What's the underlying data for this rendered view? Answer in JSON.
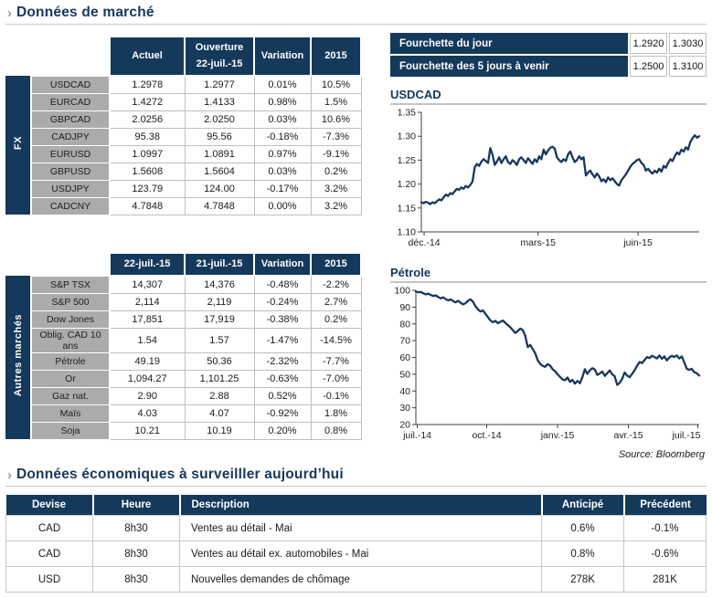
{
  "colors": {
    "navy": "#14395B",
    "title_navy": "#17375E",
    "green": "#4BA578",
    "red": "#F05F5F",
    "gray_label": "#ABABAB",
    "line": "#17375E"
  },
  "section1": {
    "chevron": "›",
    "title": "Données de marché"
  },
  "fx_table": {
    "band_label": "FX",
    "headers": {
      "actual": "Actuel",
      "open1": "Ouverture",
      "open2": "22-juil.-15",
      "variation": "Variation",
      "ytd": "2015"
    },
    "rows": [
      {
        "label": "USDCAD",
        "actual": "1.2978",
        "open": "1.2977",
        "variation": "0.01%",
        "variation_color": "green",
        "ytd": "10.5%",
        "ytd_color": "green"
      },
      {
        "label": "EURCAD",
        "actual": "1.4272",
        "open": "1.4133",
        "variation": "0.98%",
        "variation_color": "green",
        "ytd": "1.5%",
        "ytd_color": "green"
      },
      {
        "label": "GBPCAD",
        "actual": "2.0256",
        "open": "2.0250",
        "variation": "0.03%",
        "variation_color": "green",
        "ytd": "10.6%",
        "ytd_color": "green"
      },
      {
        "label": "CADJPY",
        "actual": "95.38",
        "open": "95.56",
        "variation": "-0.18%",
        "variation_color": "red",
        "ytd": "-7.3%",
        "ytd_color": "red"
      },
      {
        "label": "EURUSD",
        "actual": "1.0997",
        "open": "1.0891",
        "variation": "0.97%",
        "variation_color": "green",
        "ytd": "-9.1%",
        "ytd_color": "red"
      },
      {
        "label": "GBPUSD",
        "actual": "1.5608",
        "open": "1.5604",
        "variation": "0.03%",
        "variation_color": "green",
        "ytd": "0.2%",
        "ytd_color": "green"
      },
      {
        "label": "USDJPY",
        "actual": "123.79",
        "open": "124.00",
        "variation": "-0.17%",
        "variation_color": "red",
        "ytd": "3.2%",
        "ytd_color": "green"
      },
      {
        "label": "CADCNY",
        "actual": "4.7848",
        "open": "4.7848",
        "variation": "0.00%",
        "variation_color": "dark",
        "ytd": "3.2%",
        "ytd_color": "green"
      }
    ]
  },
  "markets_table": {
    "band_label": "Autres marchés",
    "headers": [
      "22-juil.-15",
      "21-juil.-15",
      "Variation",
      "2015"
    ],
    "rows": [
      {
        "label": "S&P TSX",
        "v1": "14,307",
        "v2": "14,376",
        "variation": "-0.48%",
        "variation_color": "red",
        "ytd": "-2.2%",
        "ytd_color": "red"
      },
      {
        "label": "S&P 500",
        "v1": "2,114",
        "v2": "2,119",
        "variation": "-0.24%",
        "variation_color": "red",
        "ytd": "2.7%",
        "ytd_color": "green"
      },
      {
        "label": "Dow Jones",
        "v1": "17,851",
        "v2": "17,919",
        "variation": "-0.38%",
        "variation_color": "red",
        "ytd": "0.2%",
        "ytd_color": "green"
      },
      {
        "label": "Oblig. CAD 10 ans",
        "v1": "1.54",
        "v2": "1.57",
        "variation": "-1.47%",
        "variation_color": "red",
        "ytd": "-14.5%",
        "ytd_color": "red"
      },
      {
        "label": "Pétrole",
        "v1": "49.19",
        "v2": "50.36",
        "variation": "-2.32%",
        "variation_color": "red",
        "ytd": "-7.7%",
        "ytd_color": "red"
      },
      {
        "label": "Or",
        "v1": "1,094.27",
        "v2": "1,101.25",
        "variation": "-0.63%",
        "variation_color": "red",
        "ytd": "-7.0%",
        "ytd_color": "red"
      },
      {
        "label": "Gaz nat.",
        "v1": "2.90",
        "v2": "2.88",
        "variation": "0.52%",
        "variation_color": "green",
        "ytd": "-0.1%",
        "ytd_color": "red"
      },
      {
        "label": "Maïs",
        "v1": "4.03",
        "v2": "4.07",
        "variation": "-0.92%",
        "variation_color": "red",
        "ytd": "1.8%",
        "ytd_color": "green"
      },
      {
        "label": "Soja",
        "v1": "10.21",
        "v2": "10.19",
        "variation": "0.20%",
        "variation_color": "green",
        "ytd": "0.8%",
        "ytd_color": "green"
      }
    ]
  },
  "fourchette": {
    "rows": [
      {
        "label": "Fourchette du jour",
        "low": "1.2920",
        "high": "1.3030"
      },
      {
        "label": "Fourchette des 5 jours à venir",
        "low": "1.2500",
        "high": "1.3100"
      }
    ]
  },
  "source": "Source: Bloomberg",
  "section2": {
    "chevron": "›",
    "title": "Données économiques à surveilller aujourd’hui"
  },
  "econ_table": {
    "headers": [
      "Devise",
      "Heure",
      "Description",
      "Anticipé",
      "Précédent"
    ],
    "rows": [
      [
        "CAD",
        "8h30",
        "Ventes au détail - Mai",
        "0.6%",
        "-0.1%"
      ],
      [
        "CAD",
        "8h30",
        "Ventes au détail ex. automobiles - Mai",
        "0.8%",
        "-0.6%"
      ],
      [
        "USD",
        "8h30",
        "Nouvelles demandes de chômage",
        "278K",
        "281K"
      ]
    ]
  },
  "chart_data": [
    {
      "type": "line",
      "title": "USDCAD",
      "line_color": "#17375E",
      "ylim": [
        1.1,
        1.35
      ],
      "yticks": [
        1.1,
        1.15,
        1.2,
        1.25,
        1.3,
        1.35
      ],
      "y_decimals": 2,
      "x_ticks": [
        {
          "pos": 0.01,
          "label": "déc.-14"
        },
        {
          "pos": 0.42,
          "label": "mars-15"
        },
        {
          "pos": 0.78,
          "label": "juin-15"
        }
      ],
      "values": [
        1.162,
        1.16,
        1.163,
        1.161,
        1.158,
        1.162,
        1.16,
        1.164,
        1.168,
        1.166,
        1.172,
        1.178,
        1.175,
        1.181,
        1.179,
        1.185,
        1.19,
        1.188,
        1.193,
        1.19,
        1.196,
        1.193,
        1.198,
        1.205,
        1.235,
        1.242,
        1.238,
        1.247,
        1.252,
        1.248,
        1.244,
        1.275,
        1.262,
        1.24,
        1.247,
        1.256,
        1.244,
        1.252,
        1.258,
        1.246,
        1.242,
        1.25,
        1.246,
        1.24,
        1.252,
        1.256,
        1.25,
        1.244,
        1.254,
        1.248,
        1.242,
        1.252,
        1.246,
        1.258,
        1.252,
        1.272,
        1.262,
        1.27,
        1.276,
        1.278,
        1.274,
        1.256,
        1.25,
        1.246,
        1.252,
        1.248,
        1.262,
        1.268,
        1.256,
        1.246,
        1.25,
        1.258,
        1.252,
        1.256,
        1.218,
        1.224,
        1.228,
        1.22,
        1.214,
        1.222,
        1.216,
        1.206,
        1.21,
        1.204,
        1.214,
        1.208,
        1.212,
        1.206,
        1.2,
        1.197,
        1.208,
        1.214,
        1.22,
        1.228,
        1.236,
        1.242,
        1.246,
        1.25,
        1.252,
        1.244,
        1.24,
        1.228,
        1.232,
        1.226,
        1.222,
        1.228,
        1.224,
        1.232,
        1.226,
        1.238,
        1.234,
        1.244,
        1.252,
        1.248,
        1.258,
        1.266,
        1.262,
        1.272,
        1.268,
        1.277,
        1.272,
        1.288,
        1.296,
        1.302,
        1.297,
        1.3
      ]
    },
    {
      "type": "line",
      "title": "Pétrole",
      "line_color": "#17375E",
      "ylim": [
        20,
        100
      ],
      "yticks": [
        20,
        30,
        40,
        50,
        60,
        70,
        80,
        90,
        100
      ],
      "y_decimals": 0,
      "x_ticks": [
        {
          "pos": 0.005,
          "label": "juil.-14"
        },
        {
          "pos": 0.25,
          "label": "oct.-14"
        },
        {
          "pos": 0.5,
          "label": "janv.-15"
        },
        {
          "pos": 0.75,
          "label": "avr.-15"
        },
        {
          "pos": 0.995,
          "label": "juil.-15"
        }
      ],
      "values": [
        99.3,
        98.8,
        99.0,
        98.2,
        97.6,
        98.0,
        97.2,
        96.6,
        97.0,
        96.0,
        95.2,
        95.8,
        94.8,
        94.0,
        94.6,
        93.6,
        92.8,
        93.8,
        92.6,
        91.6,
        92.4,
        93.8,
        94.6,
        93.2,
        90.4,
        88.6,
        87.4,
        88.0,
        86.0,
        84.0,
        82.0,
        81.0,
        81.8,
        80.4,
        81.2,
        82.0,
        80.6,
        79.2,
        78.0,
        76.2,
        74.6,
        75.8,
        77.2,
        76.4,
        73.0,
        66.2,
        67.4,
        65.0,
        62.6,
        58.4,
        56.2,
        55.0,
        54.4,
        56.0,
        55.2,
        53.0,
        51.8,
        50.0,
        48.4,
        47.0,
        46.4,
        48.0,
        45.4,
        46.6,
        44.4,
        46.0,
        44.6,
        48.2,
        53.0,
        50.2,
        52.4,
        53.6,
        52.8,
        49.6,
        50.4,
        51.6,
        49.0,
        50.6,
        52.2,
        50.0,
        48.8,
        43.6,
        44.8,
        47.2,
        51.0,
        49.2,
        48.2,
        50.2,
        52.4,
        55.0,
        57.2,
        56.6,
        58.4,
        60.2,
        59.6,
        61.0,
        60.2,
        59.4,
        61.2,
        59.2,
        60.6,
        58.2,
        60.0,
        61.0,
        60.2,
        61.2,
        59.4,
        60.6,
        57.0,
        53.2,
        52.6,
        53.2,
        51.2,
        50.6,
        49.2
      ]
    }
  ]
}
